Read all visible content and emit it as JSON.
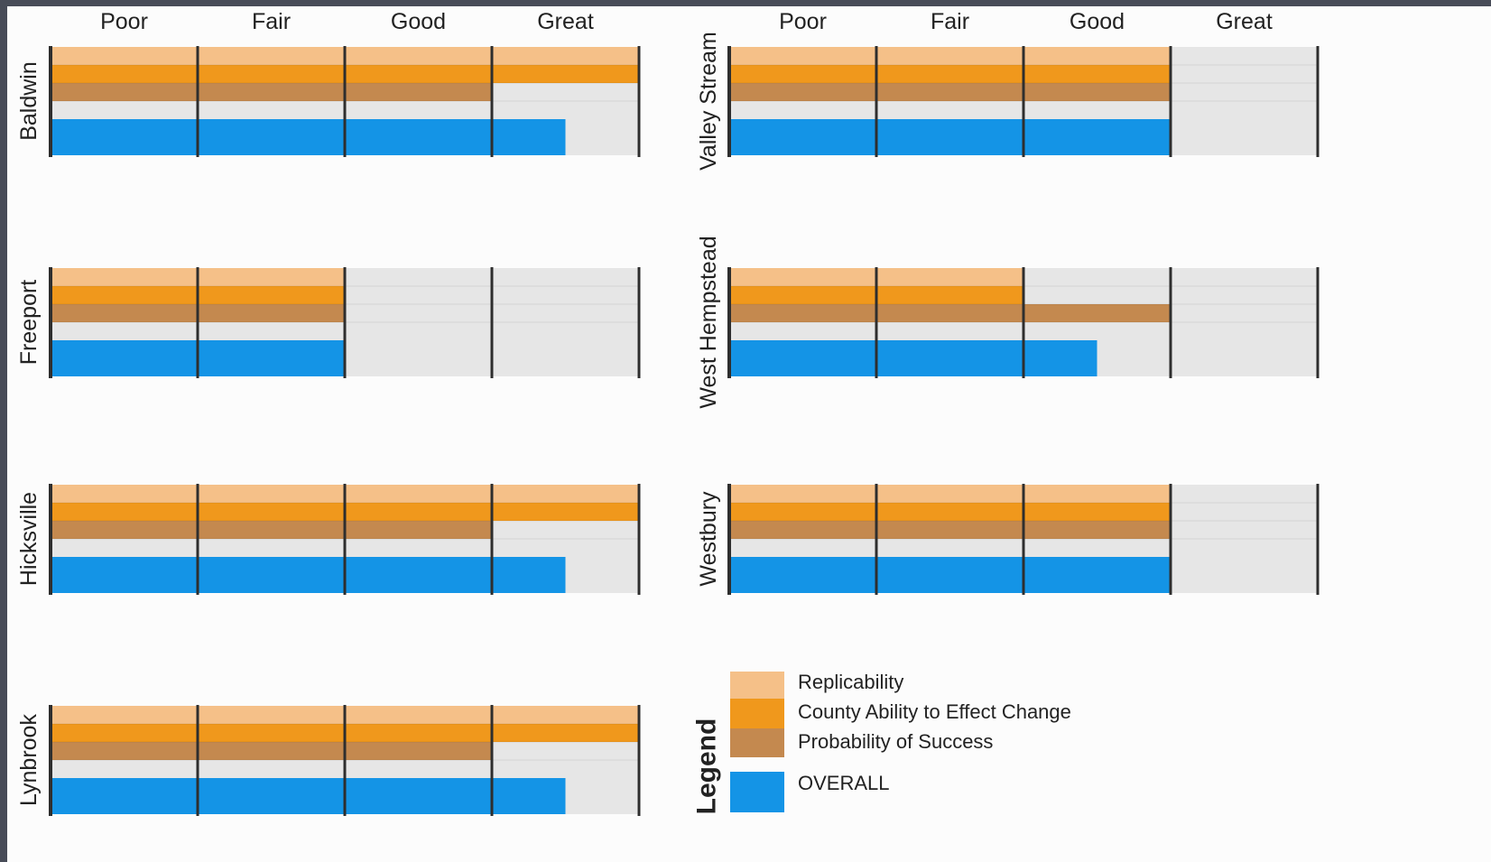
{
  "colors": {
    "Replicability": "#f5c088",
    "County Ability to Effect Change": "#f0981c",
    "Probability of Success": "#c4894f",
    "OVERALL": "#1494e6",
    "track": "#e6e6e6",
    "divider": "#2e2e2e"
  },
  "chart_data": {
    "type": "bar",
    "orientation": "horizontal",
    "scale": [
      "Poor",
      "Fair",
      "Good",
      "Great"
    ],
    "xlim": [
      0,
      4
    ],
    "series_order": [
      "Replicability",
      "County Ability to Effect Change",
      "Probability of Success",
      "OVERALL"
    ],
    "panels": [
      {
        "location": "Baldwin",
        "column": "left",
        "scale_max": 4,
        "values": {
          "Replicability": 4,
          "County Ability to Effect Change": 4,
          "Probability of Success": 3,
          "OVERALL": 3.5
        }
      },
      {
        "location": "Valley Stream",
        "column": "right",
        "scale_max": 4,
        "values": {
          "Replicability": 3,
          "County Ability to Effect Change": 3,
          "Probability of Success": 3,
          "OVERALL": 3
        }
      },
      {
        "location": "Freeport",
        "column": "left",
        "scale_max": 4,
        "values": {
          "Replicability": 2,
          "County Ability to Effect Change": 2,
          "Probability of Success": 2,
          "OVERALL": 2
        }
      },
      {
        "location": "West Hempstead",
        "column": "right",
        "scale_max": 4,
        "values": {
          "Replicability": 2,
          "County Ability to Effect Change": 2,
          "Probability of Success": 3,
          "OVERALL": 2.5
        }
      },
      {
        "location": "Hicksville",
        "column": "left",
        "scale_max": 4,
        "values": {
          "Replicability": 4,
          "County Ability to Effect Change": 4,
          "Probability of Success": 3,
          "OVERALL": 3.5
        }
      },
      {
        "location": "Westbury",
        "column": "right",
        "scale_max": 4,
        "values": {
          "Replicability": 3,
          "County Ability to Effect Change": 3,
          "Probability of Success": 3,
          "OVERALL": 3
        }
      },
      {
        "location": "Lynbrook",
        "column": "left",
        "scale_max": 4,
        "values": {
          "Replicability": 4,
          "County Ability to Effect Change": 4,
          "Probability of Success": 3,
          "OVERALL": 3.5
        }
      }
    ],
    "legend": {
      "title": "Legend",
      "items": [
        "Replicability",
        "County Ability to Effect Change",
        "Probability of Success",
        "OVERALL"
      ]
    }
  }
}
